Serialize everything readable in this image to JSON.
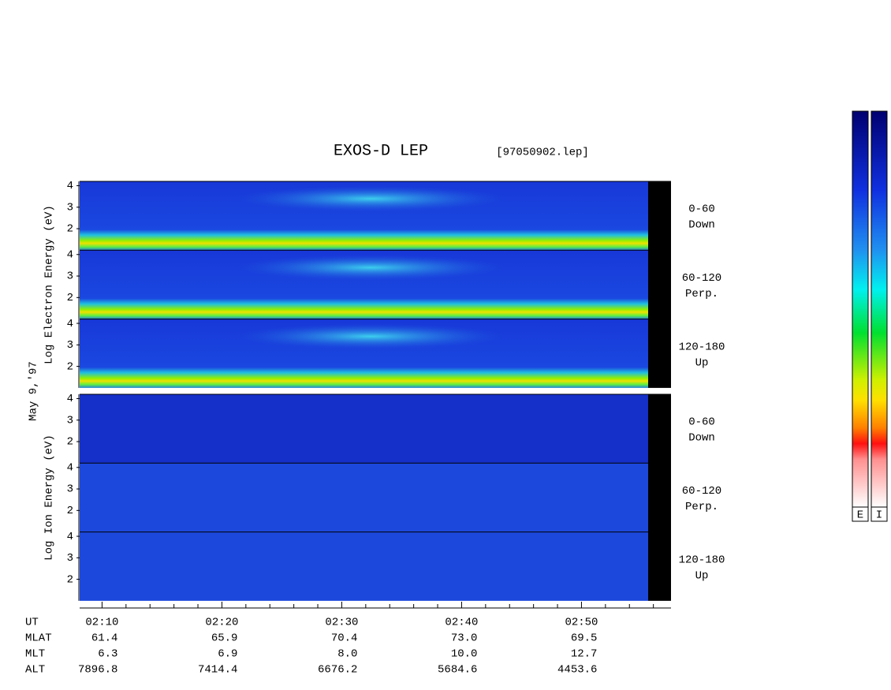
{
  "chart_data": {
    "type": "spectrogram",
    "title": "EXOS-D LEP",
    "file": "[97050902.lep]",
    "date": "May  9,'97",
    "ylim": [
      1,
      4.2
    ],
    "yticks": [
      2,
      3,
      4
    ],
    "xlim": [
      128.13,
      177.47
    ],
    "xticks": [
      {
        "value": 130,
        "label": "02:10"
      },
      {
        "value": 140,
        "label": "02:20"
      },
      {
        "value": 150,
        "label": "02:30"
      },
      {
        "value": 160,
        "label": "02:40"
      },
      {
        "value": 170,
        "label": "02:50"
      }
    ],
    "xminor": [
      132,
      134,
      136,
      138,
      142,
      144,
      146,
      148,
      152,
      154,
      156,
      158,
      162,
      164,
      166,
      168,
      172,
      174,
      176
    ],
    "groups": [
      {
        "label": "Log Electron Energy (eV)",
        "panels": [
          [
            "0-60",
            "Down"
          ],
          [
            "60-120",
            "Perp."
          ],
          [
            "120-180",
            "Up"
          ]
        ]
      },
      {
        "label": "Log Ion Energy (eV)",
        "panels": [
          [
            "0-60",
            "Down"
          ],
          [
            "60-120",
            "Perp."
          ],
          [
            "120-180",
            "Up"
          ]
        ]
      }
    ],
    "ephemeris": {
      "ut_label": "UT",
      "rows": [
        {
          "label": "MLAT",
          "values": [
            "61.4",
            "65.9",
            "70.4",
            "73.0",
            "69.5"
          ]
        },
        {
          "label": "MLT",
          "values": [
            "6.3",
            "6.9",
            "8.0",
            "10.0",
            "12.7"
          ]
        },
        {
          "label": "ALT",
          "values": [
            "7896.8",
            "7414.4",
            "6676.2",
            "5684.6",
            "4453.6"
          ]
        }
      ]
    },
    "colorbars": [
      "E",
      "I"
    ]
  }
}
